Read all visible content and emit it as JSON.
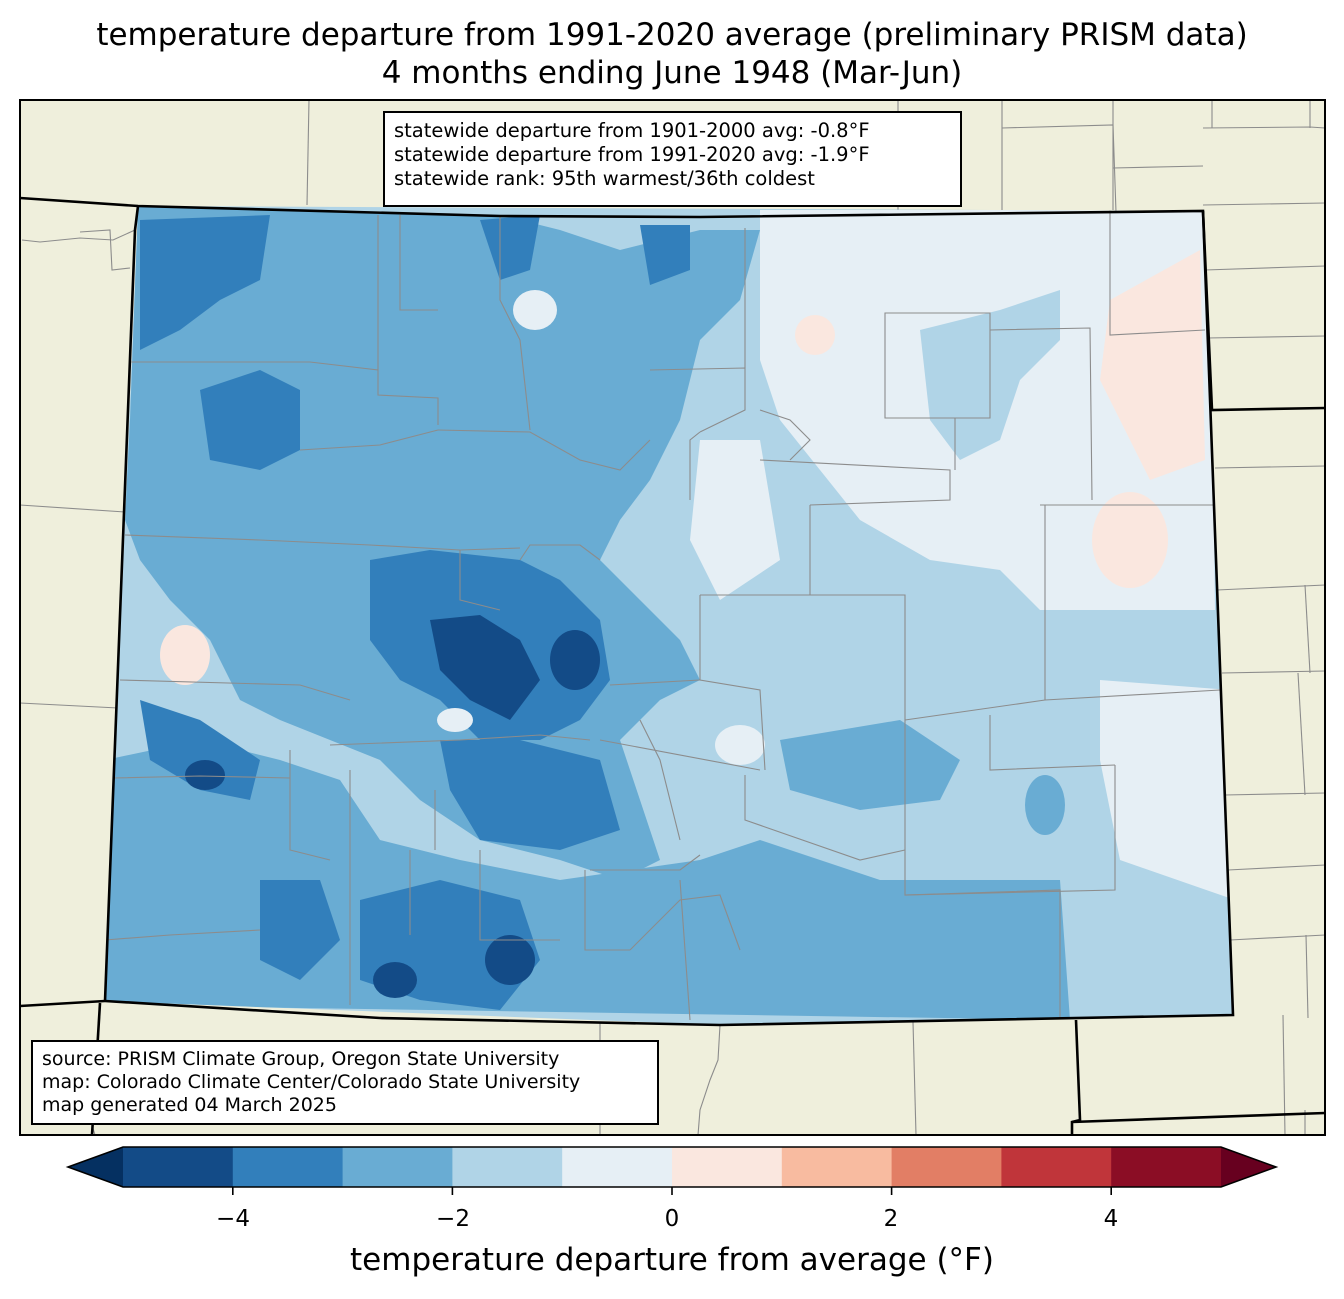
{
  "title": {
    "line1": "temperature departure from 1991-2020 average (preliminary PRISM data)",
    "line2": "4 months ending June 1948 (Mar-Jun)"
  },
  "stats": {
    "line1": "statewide departure from 1901-2000 avg: -0.8°F",
    "line2": "statewide departure from 1991-2020 avg: -1.9°F",
    "line3": "statewide rank: 95th warmest/36th coldest"
  },
  "source": {
    "line1": "source: PRISM Climate Group, Oregon State University",
    "line2": "map: Colorado Climate Center/Colorado State University",
    "line3": "map generated 04 March 2025"
  },
  "colorbar": {
    "label": "temperature departure from average (°F)",
    "ticks": [
      "−4",
      "−2",
      "0",
      "2",
      "4"
    ],
    "bins": [
      -5,
      -4,
      -3,
      -2,
      -1,
      0,
      1,
      2,
      3,
      4,
      5
    ],
    "colors": [
      "#134b87",
      "#327fbb",
      "#69acd3",
      "#b0d4e7",
      "#e6eff5",
      "#fae7df",
      "#f8bba0",
      "#e27e65",
      "#c0353a",
      "#8b0d25"
    ],
    "under_color": "#053061",
    "over_color": "#67001f"
  },
  "map_colors": {
    "background": "#efefdc",
    "county_lines": "#8c8c8c",
    "state_lines": "#000000"
  }
}
